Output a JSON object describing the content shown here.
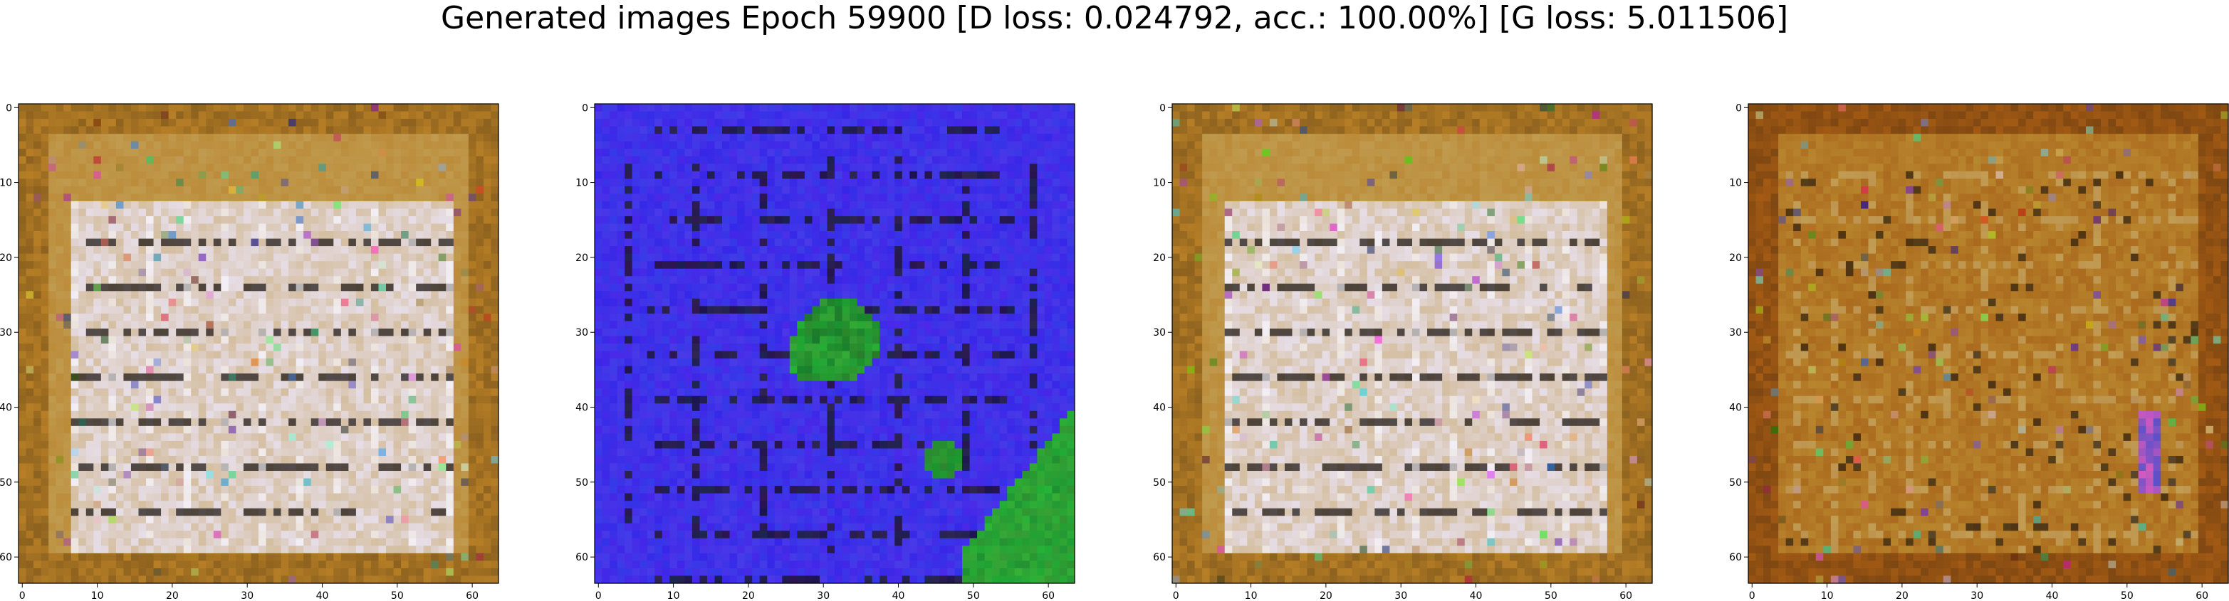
{
  "figure": {
    "title": "Generated images Epoch 59900 [D loss: 0.024792, acc.: 100.00%] [G loss: 5.011506]"
  },
  "axes_ticks": {
    "x": [
      "0",
      "10",
      "20",
      "30",
      "40",
      "50",
      "60"
    ],
    "y": [
      "0",
      "10",
      "20",
      "30",
      "40",
      "50",
      "60"
    ],
    "range": [
      -0.5,
      63.5
    ]
  },
  "panels": [
    {
      "name": "generated-image-1",
      "palette": "tan-white",
      "base_color": "#c09a4e",
      "frame_color": "#b67e26",
      "light_color": "#e6dde6"
    },
    {
      "name": "generated-image-2",
      "palette": "blue-green",
      "base_color": "#3a2ae6",
      "frame_color": "#1e1490",
      "light_color": "#26b026"
    },
    {
      "name": "generated-image-3",
      "palette": "tan-white",
      "base_color": "#c09a4e",
      "frame_color": "#b67e26",
      "light_color": "#e6dde6"
    },
    {
      "name": "generated-image-4",
      "palette": "ochre",
      "base_color": "#b8852e",
      "frame_color": "#a25a14",
      "light_color": "#c9ad6d"
    }
  ]
}
